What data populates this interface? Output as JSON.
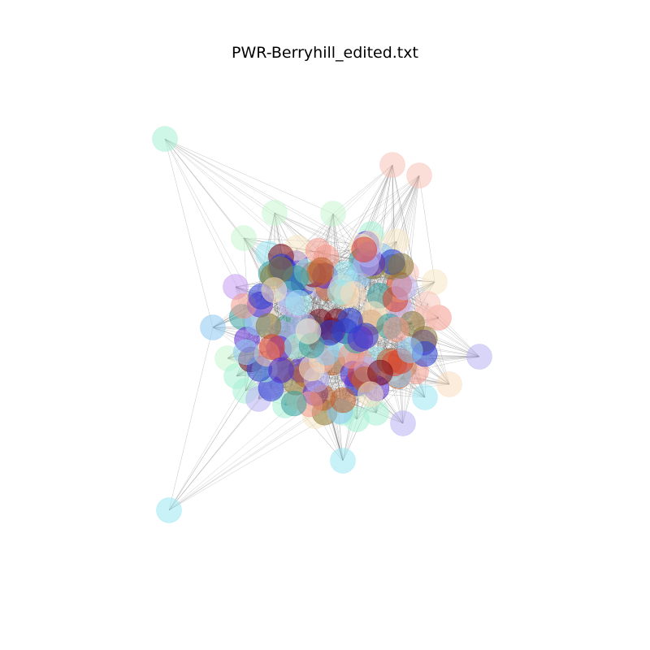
{
  "figure": {
    "title": "PWR-Berryhill_edited.txt"
  },
  "chart_data": {
    "type": "network",
    "title": "PWR-Berryhill_edited.txt",
    "layout": "force-directed",
    "axes_visible": false,
    "grid": false,
    "legend": "none",
    "node_style": "translucent colored circles",
    "edge_style": "thin gray lines",
    "palette": [
      "#9be7f2",
      "#a8f0d4",
      "#c7f5d2",
      "#f7c3b8",
      "#f29b8e",
      "#f5e6c4",
      "#f9dcc0",
      "#b9b3f2",
      "#c79bf2",
      "#8ec8f2",
      "#d9432e",
      "#7a0a1a",
      "#2a3fd0",
      "#5a2ad0",
      "#3aa0a0",
      "#8a7a3a",
      "#c0632e"
    ]
  }
}
